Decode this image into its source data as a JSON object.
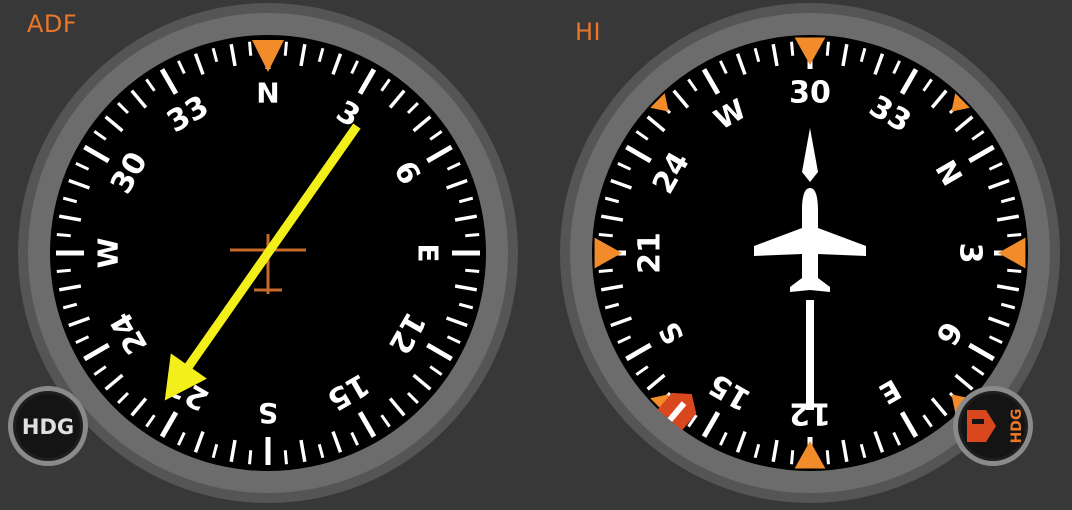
{
  "adf": {
    "label": "ADF",
    "card_labels": [
      "N",
      "3",
      "6",
      "E",
      "12",
      "15",
      "S",
      "21",
      "24",
      "W",
      "30",
      "33"
    ],
    "needle_bearing_deg": 35,
    "knob_label": "HDG"
  },
  "hi": {
    "label": "HI",
    "heading_deg": 300,
    "card_labels": [
      "N",
      "3",
      "6",
      "E",
      "12",
      "15",
      "S",
      "21",
      "24",
      "W",
      "30",
      "33"
    ],
    "heading_bug_deg": 160,
    "knob_label": "HDG"
  },
  "colors": {
    "background": "#383838",
    "bezel": "#6c6c6c",
    "face": "#000000",
    "accent": "#f28b2a",
    "needle": "#f2ef1a",
    "bug": "#d9471e",
    "label_text": "#e8772a"
  }
}
